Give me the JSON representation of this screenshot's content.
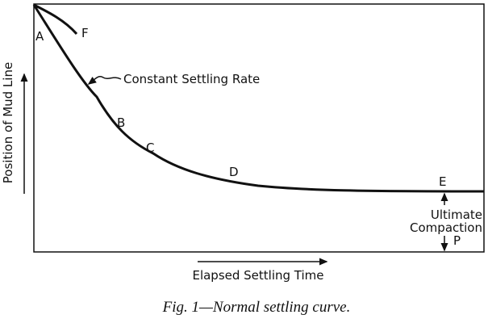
{
  "axes": {
    "y_label": "Position of Mud Line",
    "x_label": "Elapsed Settling Time"
  },
  "points": [
    "A",
    "F",
    "B",
    "C",
    "D",
    "E",
    "P"
  ],
  "annotations": {
    "rate": "Constant Settling Rate",
    "compaction": [
      "Ultimate",
      "Compaction"
    ]
  },
  "caption": "Fig. 1—Normal settling curve."
}
